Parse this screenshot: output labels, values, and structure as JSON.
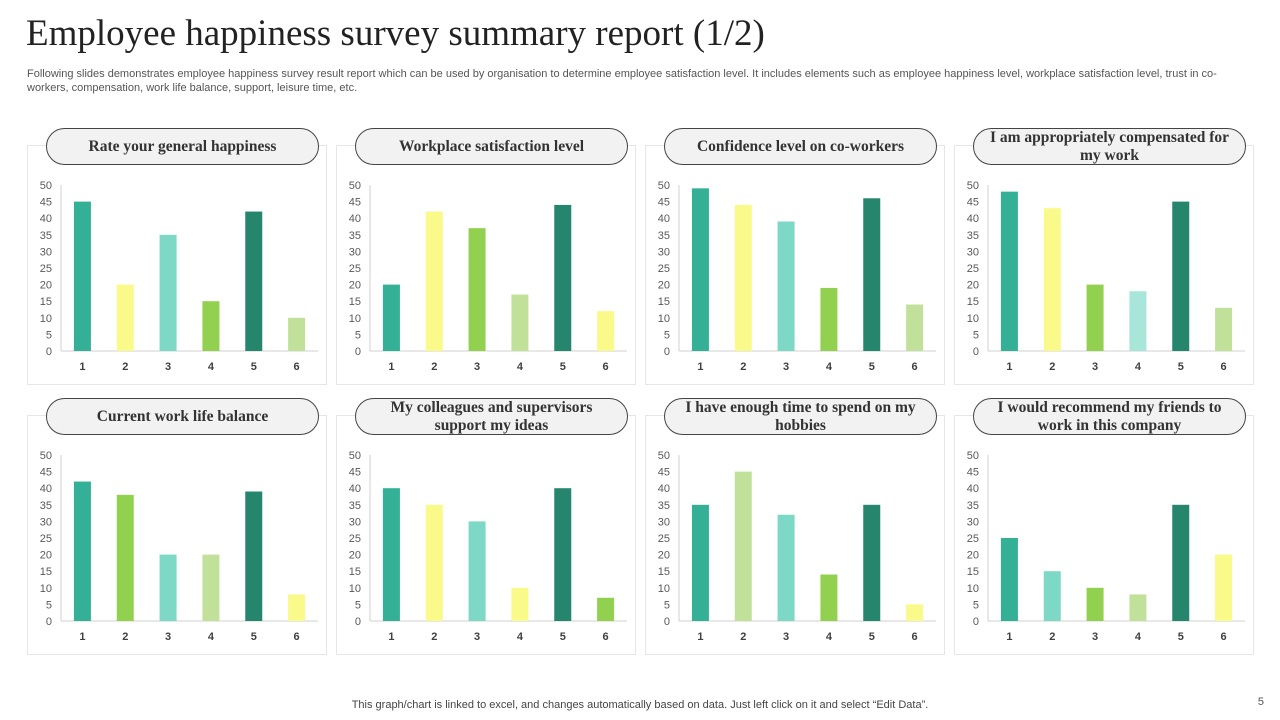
{
  "title": "Employee happiness survey summary report (1/2)",
  "subtitle": "Following slides demonstrates employee happiness survey result report which can be used by organisation to determine employee satisfaction level. It includes elements such as employee happiness level, workplace satisfaction level, trust in co-workers, compensation, work life balance, support, leisure time, etc.",
  "footer": "This graph/chart is linked to excel,  and changes automatically based on data. Just left click on it and select “Edit Data”.",
  "page_number": "5",
  "colors": {
    "teal": "#33b096",
    "yellow": "#fafa8a",
    "mint": "#7dd9c5",
    "green": "#92d050",
    "dark_green": "#25856d",
    "light_green": "#c1e19a",
    "pale_mint": "#a8e6da"
  },
  "chart_data": [
    {
      "type": "bar",
      "title": "Rate your general happiness",
      "categories": [
        "1",
        "2",
        "3",
        "4",
        "5",
        "6"
      ],
      "values": [
        45,
        20,
        35,
        15,
        42,
        10
      ],
      "bar_colors": [
        "#33b096",
        "#fafa8a",
        "#7dd9c5",
        "#92d050",
        "#25856d",
        "#c1e19a"
      ],
      "ylim": [
        0,
        50
      ],
      "yticks": [
        "0",
        "5",
        "10",
        "15",
        "20",
        "25",
        "30",
        "35",
        "40",
        "45",
        "50"
      ],
      "grid": false
    },
    {
      "type": "bar",
      "title": "Workplace satisfaction level",
      "categories": [
        "1",
        "2",
        "3",
        "4",
        "5",
        "6"
      ],
      "values": [
        20,
        42,
        37,
        17,
        44,
        12
      ],
      "bar_colors": [
        "#33b096",
        "#fafa8a",
        "#92d050",
        "#c1e19a",
        "#25856d",
        "#fafa8a"
      ],
      "ylim": [
        0,
        50
      ],
      "yticks": [
        "0",
        "5",
        "10",
        "15",
        "20",
        "25",
        "30",
        "35",
        "40",
        "45",
        "50"
      ],
      "grid": false
    },
    {
      "type": "bar",
      "title": "Confidence level on co-workers",
      "categories": [
        "1",
        "2",
        "3",
        "4",
        "5",
        "6"
      ],
      "values": [
        49,
        44,
        39,
        19,
        46,
        14
      ],
      "bar_colors": [
        "#33b096",
        "#fafa8a",
        "#7dd9c5",
        "#92d050",
        "#25856d",
        "#c1e19a"
      ],
      "ylim": [
        0,
        50
      ],
      "yticks": [
        "0",
        "5",
        "10",
        "15",
        "20",
        "25",
        "30",
        "35",
        "40",
        "45",
        "50"
      ],
      "grid": false
    },
    {
      "type": "bar",
      "title": "I am appropriately compensated for my work",
      "categories": [
        "1",
        "2",
        "3",
        "4",
        "5",
        "6"
      ],
      "values": [
        48,
        43,
        20,
        18,
        45,
        13
      ],
      "bar_colors": [
        "#33b096",
        "#fafa8a",
        "#92d050",
        "#a8e6da",
        "#25856d",
        "#c1e19a"
      ],
      "ylim": [
        0,
        50
      ],
      "yticks": [
        "0",
        "5",
        "10",
        "15",
        "20",
        "25",
        "30",
        "35",
        "40",
        "45",
        "50"
      ],
      "grid": false
    },
    {
      "type": "bar",
      "title": "Current work life balance",
      "categories": [
        "1",
        "2",
        "3",
        "4",
        "5",
        "6"
      ],
      "values": [
        42,
        38,
        20,
        20,
        39,
        8
      ],
      "bar_colors": [
        "#33b096",
        "#92d050",
        "#7dd9c5",
        "#c1e19a",
        "#25856d",
        "#fafa8a"
      ],
      "ylim": [
        0,
        50
      ],
      "yticks": [
        "0",
        "5",
        "10",
        "15",
        "20",
        "25",
        "30",
        "35",
        "40",
        "45",
        "50"
      ],
      "grid": false
    },
    {
      "type": "bar",
      "title": "My colleagues and supervisors support my ideas",
      "categories": [
        "1",
        "2",
        "3",
        "4",
        "5",
        "6"
      ],
      "values": [
        40,
        35,
        30,
        10,
        40,
        7
      ],
      "bar_colors": [
        "#33b096",
        "#fafa8a",
        "#7dd9c5",
        "#fafa8a",
        "#25856d",
        "#92d050"
      ],
      "ylim": [
        0,
        50
      ],
      "yticks": [
        "0",
        "5",
        "10",
        "15",
        "20",
        "25",
        "30",
        "35",
        "40",
        "45",
        "50"
      ],
      "grid": false
    },
    {
      "type": "bar",
      "title": "I have enough time to spend on my hobbies",
      "categories": [
        "1",
        "2",
        "3",
        "4",
        "5",
        "6"
      ],
      "values": [
        35,
        45,
        32,
        14,
        35,
        5
      ],
      "bar_colors": [
        "#33b096",
        "#c1e19a",
        "#7dd9c5",
        "#92d050",
        "#25856d",
        "#fafa8a"
      ],
      "ylim": [
        0,
        50
      ],
      "yticks": [
        "0",
        "5",
        "10",
        "15",
        "20",
        "25",
        "30",
        "35",
        "40",
        "45",
        "50"
      ],
      "grid": false
    },
    {
      "type": "bar",
      "title": "I would recommend my friends to work in this company",
      "categories": [
        "1",
        "2",
        "3",
        "4",
        "5",
        "6"
      ],
      "values": [
        25,
        15,
        10,
        8,
        35,
        20
      ],
      "bar_colors": [
        "#33b096",
        "#7dd9c5",
        "#92d050",
        "#c1e19a",
        "#25856d",
        "#fafa8a"
      ],
      "ylim": [
        0,
        50
      ],
      "yticks": [
        "0",
        "5",
        "10",
        "15",
        "20",
        "25",
        "30",
        "35",
        "40",
        "45",
        "50"
      ],
      "grid": false
    }
  ]
}
